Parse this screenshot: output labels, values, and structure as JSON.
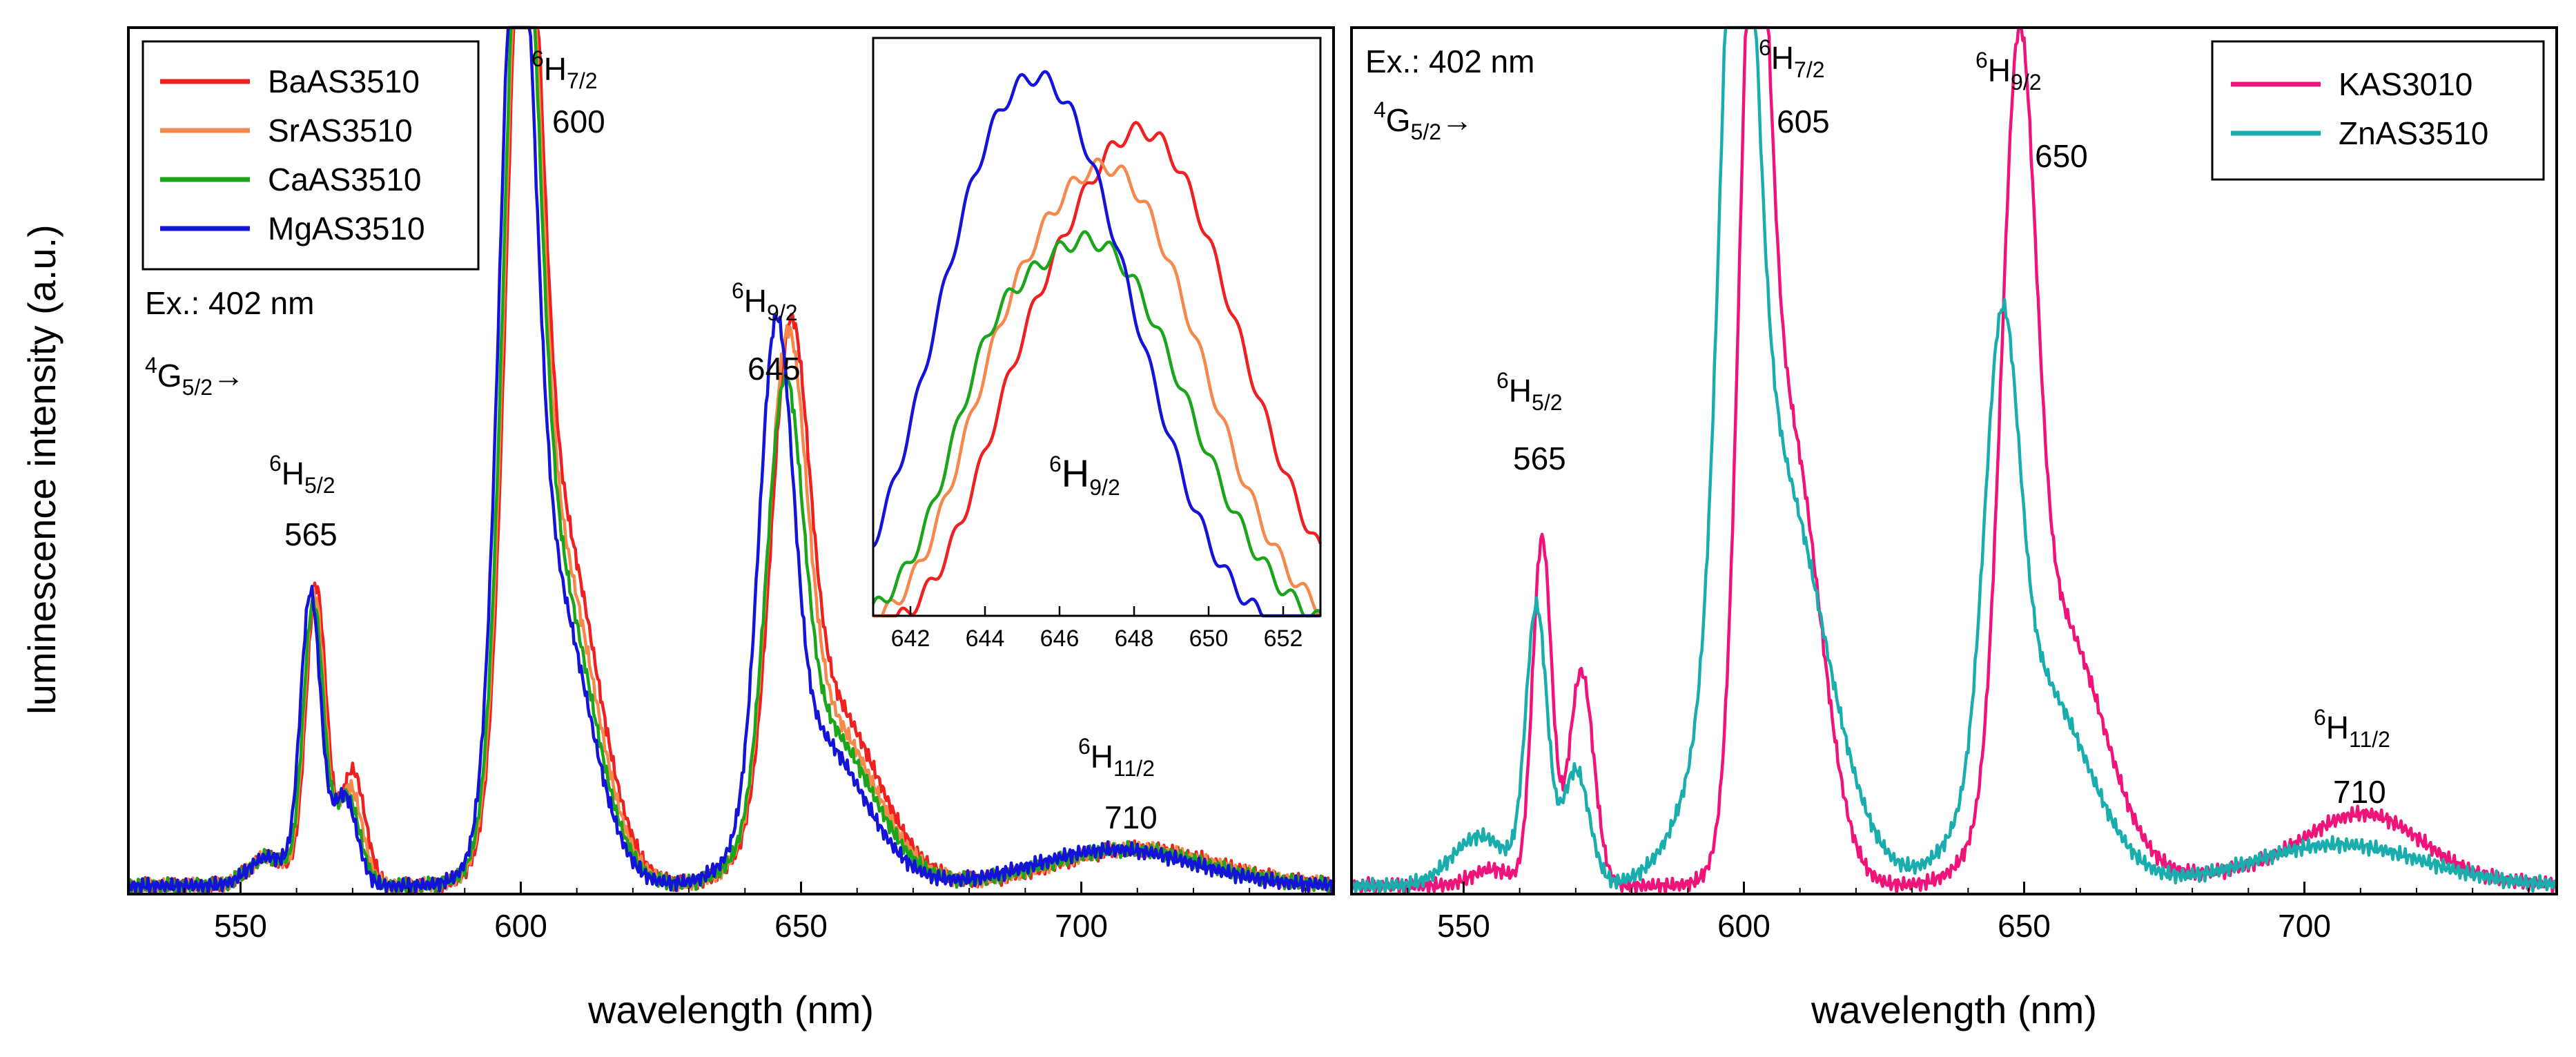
{
  "ylabel": "luminescence intensity (a.u.)",
  "chart_data": [
    {
      "id": "left",
      "type": "line",
      "xlabel": "wavelength (nm)",
      "ylabel": "luminescence intensity (a.u.)",
      "xlim": [
        530,
        745
      ],
      "ylim": [
        0,
        1.05
      ],
      "xticks": [
        550,
        600,
        650,
        700
      ],
      "excitation": "Ex.: 402 nm",
      "transition": {
        "base": "4",
        "term": "G",
        "sub": "5/2",
        "arrow": "→"
      },
      "peaks": [
        {
          "sup": "6",
          "term": "H",
          "sub": "5/2",
          "wavelength": "565"
        },
        {
          "sup": "6",
          "term": "H",
          "sub": "7/2",
          "wavelength": "600"
        },
        {
          "sup": "6",
          "term": "H",
          "sub": "9/2",
          "wavelength": "645"
        },
        {
          "sup": "6",
          "term": "H",
          "sub": "11/2",
          "wavelength": "710"
        }
      ],
      "series": [
        {
          "name": "BaAS3510",
          "color": "#ee2020",
          "shift": 1.0,
          "components": [
            [
              563.5,
              1.8,
              0.36
            ],
            [
              570,
              2.2,
              0.14
            ],
            [
              555,
              3.5,
              0.035
            ],
            [
              600.5,
              3.0,
              1.02
            ],
            [
              607,
              6.5,
              0.43
            ],
            [
              648,
              3.3,
              0.53
            ],
            [
              655,
              8.5,
              0.22
            ],
            [
              710,
              14,
              0.045
            ]
          ]
        },
        {
          "name": "SrAS3510",
          "color": "#f5884a",
          "shift": 0.5,
          "components": [
            [
              563.2,
              1.8,
              0.35
            ],
            [
              569.5,
              2.2,
              0.12
            ],
            [
              555,
              3.5,
              0.035
            ],
            [
              600.2,
              3.0,
              1.02
            ],
            [
              606.5,
              6.5,
              0.4
            ],
            [
              647.5,
              3.3,
              0.53
            ],
            [
              654.5,
              8.5,
              0.2
            ],
            [
              709,
              14,
              0.045
            ]
          ]
        },
        {
          "name": "CaAS3510",
          "color": "#1aa51a",
          "shift": 0.2,
          "components": [
            [
              563,
              1.8,
              0.34
            ],
            [
              569,
              2.2,
              0.11
            ],
            [
              555,
              3.5,
              0.035
            ],
            [
              600,
              3.0,
              1.02
            ],
            [
              606,
              6.5,
              0.38
            ],
            [
              647,
              3.2,
              0.48
            ],
            [
              654,
              8.5,
              0.19
            ],
            [
              708,
              14,
              0.044
            ]
          ]
        },
        {
          "name": "MgAS3510",
          "color": "#1414d8",
          "shift": 0.0,
          "components": [
            [
              562.5,
              1.8,
              0.35
            ],
            [
              568.5,
              2.2,
              0.11
            ],
            [
              555,
              3.5,
              0.035
            ],
            [
              599.3,
              3.0,
              1.02
            ],
            [
              605.5,
              6.5,
              0.36
            ],
            [
              645.5,
              3.0,
              0.56
            ],
            [
              652.5,
              8.5,
              0.18
            ],
            [
              706,
              14,
              0.044
            ]
          ]
        }
      ],
      "inset": {
        "xlim": [
          641,
          653
        ],
        "ylim": [
          0,
          1.05
        ],
        "xticks": [
          642,
          644,
          646,
          648,
          650,
          652
        ],
        "label": {
          "sup": "6",
          "term": "H",
          "sub": "9/2"
        },
        "curves": [
          {
            "name": "BaAS3510",
            "color": "#ee2020",
            "components": [
              [
                648.2,
                2.6,
                0.93
              ],
              [
                644.8,
                1.2,
                0.12
              ]
            ]
          },
          {
            "name": "SrAS3510",
            "color": "#f5884a",
            "components": [
              [
                647.3,
                2.5,
                0.86
              ],
              [
                644.3,
                1.2,
                0.14
              ]
            ]
          },
          {
            "name": "CaAS3510",
            "color": "#1aa51a",
            "components": [
              [
                646.8,
                2.6,
                0.73
              ],
              [
                644.0,
                1.0,
                0.14
              ]
            ]
          },
          {
            "name": "MgAS3510",
            "color": "#1414d8",
            "components": [
              [
                645.6,
                2.4,
                1.0
              ],
              [
                643.3,
                1.3,
                0.12
              ]
            ]
          }
        ]
      }
    },
    {
      "id": "right",
      "type": "line",
      "xlabel": "wavelength (nm)",
      "xlim": [
        530,
        745
      ],
      "ylim": [
        0,
        1.05
      ],
      "xticks": [
        550,
        600,
        650,
        700
      ],
      "excitation": "Ex.: 402 nm",
      "transition": {
        "base": "4",
        "term": "G",
        "sub": "5/2",
        "arrow": "→"
      },
      "peaks": [
        {
          "sup": "6",
          "term": "H",
          "sub": "5/2",
          "wavelength": "565"
        },
        {
          "sup": "6",
          "term": "H",
          "sub": "7/2",
          "wavelength": "605"
        },
        {
          "sup": "6",
          "term": "H",
          "sub": "9/2",
          "wavelength": "650"
        },
        {
          "sup": "6",
          "term": "H",
          "sub": "11/2",
          "wavelength": "710"
        }
      ],
      "series": [
        {
          "name": "KAS3010",
          "color": "#f0137a",
          "shift": 0.0,
          "components": [
            [
              564,
              1.7,
              0.42
            ],
            [
              571,
              2.2,
              0.26
            ],
            [
              555,
              3.5,
              0.02
            ],
            [
              601.8,
              2.6,
              0.98
            ],
            [
              608,
              5.5,
              0.55
            ],
            [
              649,
              3.0,
              0.82
            ],
            [
              656,
              8.0,
              0.32
            ],
            [
              711,
              10,
              0.07
            ],
            [
              700,
              20,
              0.02
            ]
          ]
        },
        {
          "name": "ZnAS3510",
          "color": "#1aadad",
          "shift": 0.0,
          "components": [
            [
              563,
              1.9,
              0.33
            ],
            [
              570,
              2.4,
              0.14
            ],
            [
              553,
              5.0,
              0.06
            ],
            [
              599,
              3.0,
              0.96
            ],
            [
              605,
              9.0,
              0.52
            ],
            [
              646,
              3.0,
              0.5
            ],
            [
              652,
              9.0,
              0.25
            ],
            [
              706,
              15,
              0.05
            ]
          ]
        }
      ]
    }
  ]
}
